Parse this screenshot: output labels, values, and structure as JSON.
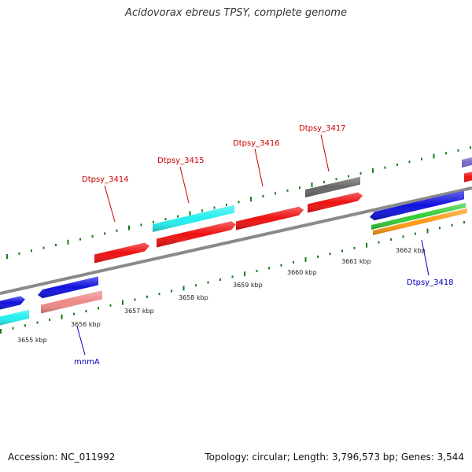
{
  "title": "Acidovorax ebreus TPSY, complete genome",
  "footer": {
    "accession": "Accession: NC_011992",
    "summary": "Topology: circular; Length: 3,796,573 bp; Genes: 3,544"
  },
  "colors": {
    "backbone": "#8a8a8a",
    "tick": "#1a7a1a",
    "red_cds": "#ee1111",
    "cyan_cds": "#22eeee",
    "blue_cds": "#1111dd",
    "pink_cds": "#ee8888",
    "gray_cds": "#666666",
    "green_cds": "#33cc33",
    "orange_cds": "#ff9911",
    "purple_cds": "#7766cc",
    "label_red": "#cc0000",
    "label_blue": "#0000bb"
  },
  "kbp_labels": [
    "3655 kbp",
    "3656 kbp",
    "3657 kbp",
    "3658 kbp",
    "3659 kbp",
    "3660 kbp",
    "3661 kbp",
    "3662 kbp"
  ],
  "gene_labels": [
    {
      "text": "Dtpsy_3414",
      "color": "red"
    },
    {
      "text": "Dtpsy_3415",
      "color": "red"
    },
    {
      "text": "Dtpsy_3416",
      "color": "red"
    },
    {
      "text": "Dtpsy_3417",
      "color": "red"
    },
    {
      "text": "Dtpsy_3418",
      "color": "blue"
    },
    {
      "text": "mnmA",
      "color": "blue"
    }
  ]
}
